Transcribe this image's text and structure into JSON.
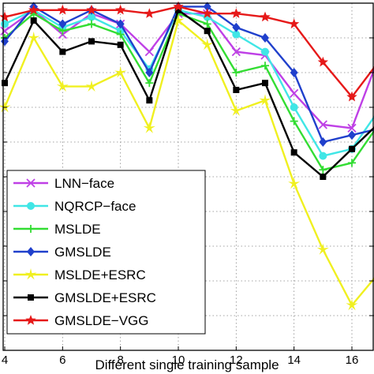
{
  "chart_data": {
    "type": "line",
    "title": "",
    "xlabel": "Different single training sample",
    "ylabel": "",
    "x": [
      4,
      5,
      6,
      7,
      8,
      9,
      10,
      11,
      12,
      13,
      14,
      15,
      16,
      17
    ],
    "x_ticks": [
      "4",
      "6",
      "8",
      "10",
      "12",
      "14",
      "16"
    ],
    "xlim": [
      4,
      17
    ],
    "ylim": [
      0,
      100
    ],
    "grid": true,
    "legend": "bottom-left",
    "series": [
      {
        "name": "LNN−face",
        "color": "#bf40e6",
        "marker": "x",
        "values": [
          92,
          98,
          91,
          97,
          94,
          86,
          97,
          97,
          86,
          85,
          74,
          65,
          64,
          86
        ]
      },
      {
        "name": "NQRCP−face",
        "color": "#40e6e6",
        "marker": "o",
        "values": [
          94,
          98,
          93,
          96,
          92,
          81,
          98,
          96,
          91,
          86,
          70,
          56,
          58,
          70
        ]
      },
      {
        "name": "MSLDE",
        "color": "#33dd33",
        "marker": "+",
        "values": [
          90,
          97,
          92,
          94,
          91,
          77,
          97,
          94,
          80,
          82,
          66,
          52,
          54,
          66
        ]
      },
      {
        "name": "GMSLDE",
        "color": "#2040cc",
        "marker": "diamond",
        "values": [
          89,
          99,
          94,
          98,
          94,
          80,
          99,
          99,
          93,
          90,
          80,
          60,
          62,
          64
        ]
      },
      {
        "name": "MSLDE+ESRC",
        "color": "#f0f020",
        "marker": "*",
        "values": [
          70,
          90,
          76,
          76,
          80,
          64,
          95,
          88,
          69,
          72,
          48,
          29,
          13,
          23
        ]
      },
      {
        "name": "GMSLDE+ESRC",
        "color": "#000000",
        "marker": "square",
        "values": [
          77,
          95,
          86,
          89,
          88,
          72,
          98,
          92,
          75,
          77,
          57,
          50,
          58,
          66
        ]
      },
      {
        "name": "GMSLDE−VGG",
        "color": "#e61919",
        "marker": "star",
        "values": [
          96,
          98,
          98,
          98,
          98,
          97,
          99,
          97,
          97,
          96,
          94,
          83,
          73,
          84
        ]
      }
    ]
  }
}
